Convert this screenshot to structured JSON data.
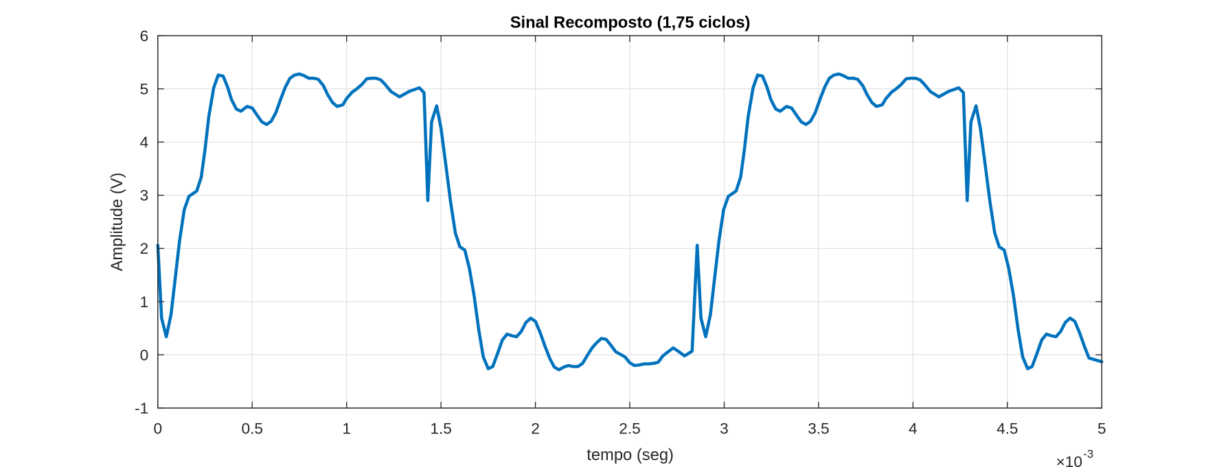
{
  "chart_data": {
    "type": "line",
    "title": "Sinal Recomposto (1,75 ciclos)",
    "x_label": "tempo (seg)",
    "y_label": "Amplitude (V)",
    "x_multiplier": {
      "base": "×10",
      "exponent": "-3"
    },
    "xlim": [
      0,
      5
    ],
    "ylim": [
      -1,
      6
    ],
    "xticks": [
      0,
      0.5,
      1,
      1.5,
      2,
      2.5,
      3,
      3.5,
      4,
      4.5,
      5
    ],
    "yticks": [
      -1,
      0,
      1,
      2,
      3,
      4,
      5,
      6
    ],
    "grid": true,
    "series": [
      {
        "color": "#0072bd",
        "x": [
          0,
          0.02,
          0.045,
          0.07,
          0.115,
          0.14,
          0.165,
          0.206,
          0.23,
          0.25,
          0.27,
          0.296,
          0.32,
          0.346,
          0.37,
          0.39,
          0.416,
          0.44,
          0.473,
          0.5,
          0.527,
          0.551,
          0.576,
          0.6,
          0.625,
          0.65,
          0.675,
          0.7,
          0.724,
          0.75,
          0.774,
          0.8,
          0.827,
          0.85,
          0.877,
          0.9,
          0.926,
          0.95,
          0.98,
          1.0,
          1.03,
          1.05,
          1.08,
          1.107,
          1.13,
          1.156,
          1.18,
          1.2,
          1.235,
          1.28,
          1.33,
          1.385,
          1.41,
          1.43,
          1.45,
          1.477,
          1.5,
          1.527,
          1.551,
          1.576,
          1.6,
          1.626,
          1.65,
          1.675,
          1.7,
          1.724,
          1.75,
          1.774,
          1.8,
          1.825,
          1.85,
          1.875,
          1.9,
          1.925,
          1.95,
          1.975,
          2.0,
          2.025,
          2.05,
          2.075,
          2.1,
          2.125,
          2.15,
          2.175,
          2.2,
          2.225,
          2.25,
          2.275,
          2.3,
          2.325,
          2.35,
          2.375,
          2.4,
          2.425,
          2.45,
          2.475,
          2.5,
          2.525,
          2.55,
          2.575,
          2.6,
          2.625,
          2.65,
          2.675,
          2.7,
          2.73,
          2.76,
          2.79,
          2.83,
          2.857,
          2.877,
          2.902,
          2.927,
          2.972,
          2.997,
          3.022,
          3.063,
          3.087,
          3.107,
          3.127,
          3.153,
          3.177,
          3.203,
          3.227,
          3.247,
          3.273,
          3.297,
          3.33,
          3.357,
          3.384,
          3.408,
          3.433,
          3.457,
          3.482,
          3.507,
          3.532,
          3.557,
          3.581,
          3.607,
          3.631,
          3.657,
          3.684,
          3.707,
          3.734,
          3.757,
          3.783,
          3.807,
          3.837,
          3.857,
          3.887,
          3.907,
          3.937,
          3.964,
          3.987,
          4.013,
          4.037,
          4.057,
          4.092,
          4.137,
          4.187,
          4.242,
          4.267,
          4.287,
          4.307,
          4.334,
          4.357,
          4.384,
          4.408,
          4.433,
          4.457,
          4.483,
          4.507,
          4.532,
          4.557,
          4.581,
          4.607,
          4.631,
          4.657,
          4.682,
          4.707,
          4.732,
          4.757,
          4.782,
          4.807,
          4.832,
          4.857,
          4.882,
          4.907,
          4.932,
          5.0
        ],
        "values": [
          2.06,
          0.69,
          0.34,
          0.76,
          2.14,
          2.73,
          2.98,
          3.08,
          3.34,
          3.86,
          4.48,
          5.02,
          5.26,
          5.24,
          5.03,
          4.8,
          4.62,
          4.58,
          4.67,
          4.64,
          4.5,
          4.38,
          4.33,
          4.39,
          4.55,
          4.8,
          5.03,
          5.2,
          5.26,
          5.28,
          5.25,
          5.2,
          5.2,
          5.18,
          5.06,
          4.89,
          4.74,
          4.67,
          4.7,
          4.82,
          4.94,
          4.99,
          5.08,
          5.19,
          5.2,
          5.2,
          5.17,
          5.1,
          4.95,
          4.85,
          4.95,
          5.02,
          4.93,
          2.9,
          4.38,
          4.68,
          4.26,
          3.53,
          2.87,
          2.29,
          2.03,
          1.97,
          1.63,
          1.12,
          0.47,
          -0.04,
          -0.26,
          -0.22,
          0.03,
          0.28,
          0.39,
          0.36,
          0.34,
          0.44,
          0.61,
          0.69,
          0.63,
          0.42,
          0.17,
          -0.06,
          -0.23,
          -0.28,
          -0.23,
          -0.2,
          -0.22,
          -0.22,
          -0.16,
          -0.01,
          0.13,
          0.23,
          0.31,
          0.29,
          0.18,
          0.06,
          0.01,
          -0.04,
          -0.15,
          -0.2,
          -0.19,
          -0.17,
          -0.17,
          -0.16,
          -0.14,
          -0.02,
          0.05,
          0.13,
          0.06,
          -0.02,
          0.07,
          2.06,
          0.69,
          0.34,
          0.76,
          2.14,
          2.73,
          2.98,
          3.08,
          3.34,
          3.86,
          4.48,
          5.02,
          5.26,
          5.24,
          5.03,
          4.8,
          4.62,
          4.58,
          4.67,
          4.64,
          4.5,
          4.38,
          4.33,
          4.39,
          4.55,
          4.8,
          5.03,
          5.2,
          5.26,
          5.28,
          5.25,
          5.2,
          5.2,
          5.18,
          5.06,
          4.89,
          4.74,
          4.67,
          4.7,
          4.82,
          4.94,
          4.99,
          5.08,
          5.19,
          5.2,
          5.2,
          5.17,
          5.1,
          4.95,
          4.85,
          4.95,
          5.02,
          4.93,
          2.9,
          4.38,
          4.68,
          4.26,
          3.53,
          2.87,
          2.29,
          2.03,
          1.97,
          1.63,
          1.12,
          0.47,
          -0.04,
          -0.26,
          -0.22,
          0.03,
          0.28,
          0.39,
          0.36,
          0.34,
          0.44,
          0.61,
          0.69,
          0.63,
          0.42,
          0.17,
          -0.06,
          -0.13
        ]
      }
    ]
  }
}
